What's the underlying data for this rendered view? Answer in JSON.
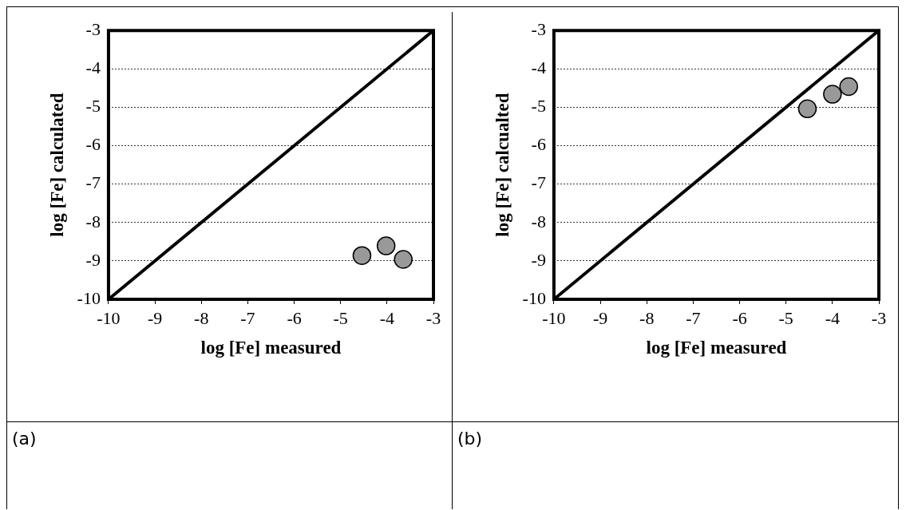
{
  "chart_data": [
    {
      "type": "scatter",
      "xlabel": "log [Fe] measured",
      "ylabel": "log [Fe] calculated",
      "annotations": [
        "(a)"
      ],
      "xlim": [
        -10,
        -3
      ],
      "ylim": [
        -10,
        -3
      ],
      "xticks": [
        -10,
        -9,
        -8,
        -7,
        -6,
        -5,
        -4,
        -3
      ],
      "yticks": [
        -10,
        -9,
        -8,
        -7,
        -6,
        -5,
        -4,
        -3
      ],
      "grid": "y",
      "series": [
        {
          "marker": "circle",
          "color": "#999999",
          "x": [
            -4.54,
            -4.02,
            -3.65
          ],
          "values": [
            -8.86,
            -8.61,
            -8.96
          ]
        },
        {
          "type": "line",
          "marker": "none",
          "color": "#000000",
          "x": [
            -10,
            -3
          ],
          "values": [
            -10,
            -3
          ]
        }
      ]
    },
    {
      "type": "scatter",
      "xlabel": "log [Fe] measured",
      "ylabel": "log [Fe] calcualted",
      "annotations": [
        "(b)"
      ],
      "xlim": [
        -10,
        -3
      ],
      "ylim": [
        -10,
        -3
      ],
      "xticks": [
        -10,
        -9,
        -8,
        -7,
        -6,
        -5,
        -4,
        -3
      ],
      "yticks": [
        -10,
        -9,
        -8,
        -7,
        -6,
        -5,
        -4,
        -3
      ],
      "grid": "y",
      "series": [
        {
          "marker": "circle",
          "color": "#999999",
          "x": [
            -4.54,
            -4.0,
            -3.65
          ],
          "values": [
            -5.04,
            -4.66,
            -4.46
          ]
        },
        {
          "type": "line",
          "marker": "none",
          "color": "#000000",
          "x": [
            -10,
            -3
          ],
          "values": [
            -10,
            -3
          ]
        }
      ]
    }
  ]
}
